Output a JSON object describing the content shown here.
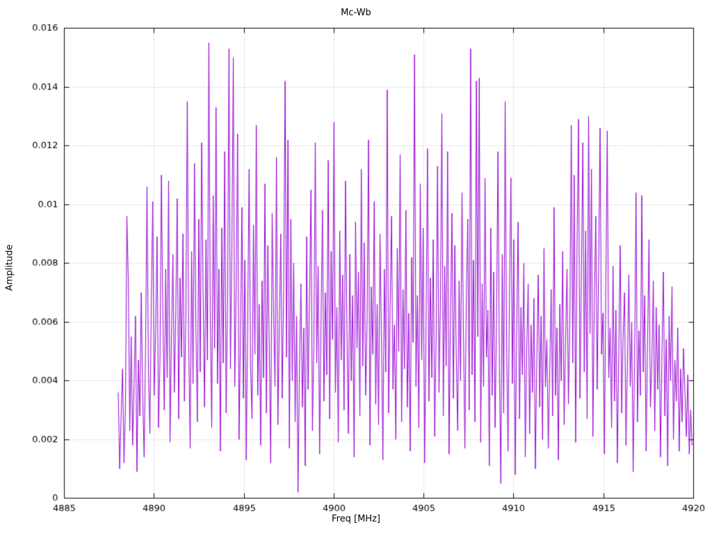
{
  "chart_data": {
    "type": "line",
    "title": "Mc-Wb",
    "xlabel": "Freq [MHz]",
    "ylabel": "Amplitude",
    "xlim": [
      4885,
      4920
    ],
    "ylim": [
      0,
      0.016
    ],
    "x_ticks": [
      4885,
      4890,
      4895,
      4900,
      4905,
      4910,
      4915,
      4920
    ],
    "x_tick_labels": [
      "4885",
      "4890",
      "4895",
      "4900",
      "4905",
      "4910",
      "4915",
      "4920"
    ],
    "y_ticks": [
      0,
      0.002,
      0.004,
      0.006,
      0.008,
      0.01,
      0.012,
      0.014,
      0.016
    ],
    "y_tick_labels": [
      "0",
      "0.002",
      "0.004",
      "0.006",
      "0.008",
      "0.01",
      "0.012",
      "0.014",
      "0.016"
    ],
    "grid": "dotted",
    "legend": "none",
    "line_color": "#9400d3",
    "grid_color": "#9e9e9e",
    "axis_color": "#000000",
    "x_start": 4888.0,
    "x_step": 0.08,
    "amp_scale": 0.0001,
    "values": [
      36,
      10,
      28,
      44,
      12,
      31,
      96,
      74,
      23,
      55,
      18,
      39,
      62,
      9,
      47,
      28,
      70,
      35,
      14,
      52,
      106,
      43,
      22,
      68,
      101,
      35,
      57,
      89,
      24,
      46,
      110,
      63,
      30,
      78,
      41,
      108,
      19,
      55,
      83,
      36,
      64,
      102,
      27,
      75,
      48,
      90,
      33,
      61,
      135,
      52,
      17,
      84,
      39,
      114,
      58,
      26,
      95,
      43,
      121,
      70,
      31,
      88,
      47,
      155,
      62,
      24,
      103,
      51,
      133,
      39,
      78,
      16,
      92,
      46,
      118,
      29,
      67,
      153,
      44,
      85,
      150,
      38,
      72,
      124,
      20,
      56,
      99,
      34,
      81,
      13,
      60,
      112,
      45,
      27,
      93,
      49,
      127,
      35,
      66,
      18,
      74,
      41,
      107,
      29,
      86,
      53,
      12,
      97,
      63,
      38,
      116,
      25,
      59,
      90,
      34,
      71,
      142,
      48,
      122,
      17,
      95,
      40,
      80,
      26,
      62,
      2,
      44,
      73,
      31,
      58,
      11,
      89,
      37,
      68,
      105,
      23,
      52,
      121,
      46,
      79,
      15,
      61,
      98,
      33,
      70,
      42,
      115,
      27,
      84,
      54,
      128,
      36,
      65,
      19,
      91,
      47,
      76,
      30,
      108,
      57,
      22,
      83,
      40,
      69,
      14,
      94,
      51,
      77,
      28,
      112,
      45,
      87,
      35,
      60,
      122,
      18,
      72,
      49,
      101,
      32,
      66,
      25,
      90,
      55,
      13,
      78,
      43,
      139,
      29,
      64,
      96,
      37,
      59,
      20,
      85,
      50,
      117,
      26,
      71,
      44,
      98,
      31,
      63,
      16,
      82,
      53,
      151,
      38,
      69,
      24,
      107,
      47,
      92,
      12,
      58,
      119,
      33,
      75,
      41,
      88,
      21,
      54,
      113,
      36,
      67,
      131,
      28,
      79,
      45,
      118,
      15,
      62,
      97,
      34,
      86,
      49,
      23,
      74,
      40,
      104,
      57,
      17,
      68,
      95,
      30,
      153,
      42,
      81,
      26,
      142,
      55,
      143,
      19,
      73,
      38,
      109,
      48,
      64,
      11,
      92,
      35,
      77,
      24,
      60,
      118,
      45,
      5,
      83,
      29,
      135,
      52,
      16,
      70,
      109,
      39,
      88,
      8,
      56,
      94,
      27,
      65,
      42,
      80,
      14,
      51,
      73,
      22,
      59,
      36,
      68,
      10,
      47,
      76,
      31,
      62,
      20,
      85,
      38,
      54,
      17,
      44,
      71,
      28,
      99,
      35,
      58,
      13,
      66,
      40,
      84,
      25,
      53,
      78,
      32,
      61,
      127,
      46,
      110,
      19,
      87,
      129,
      34,
      74,
      121,
      43,
      91,
      27,
      130,
      56,
      112,
      21,
      68,
      96,
      37,
      80,
      126,
      49,
      63,
      15,
      72,
      125,
      41,
      58,
      24,
      79,
      33,
      64,
      12,
      50,
      86,
      29,
      55,
      70,
      18,
      45,
      76,
      38,
      60,
      9,
      48,
      104,
      26,
      57,
      35,
      103,
      43,
      69,
      16,
      52,
      88,
      31,
      46,
      74,
      23,
      65,
      37,
      59,
      14,
      49,
      77,
      28,
      54,
      11,
      62,
      40,
      72,
      20,
      47,
      33,
      58,
      16,
      44,
      26,
      51,
      36,
      21,
      42,
      15,
      30,
      18
    ]
  }
}
